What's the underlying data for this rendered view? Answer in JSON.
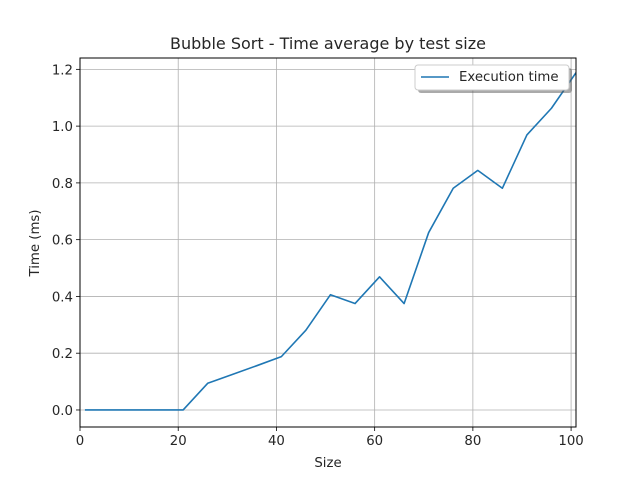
{
  "chart_data": {
    "type": "line",
    "title": "Bubble Sort - Time average by test size",
    "xlabel": "Size",
    "ylabel": "Time (ms)",
    "xlim": [
      0,
      101
    ],
    "ylim": [
      -0.06,
      1.24
    ],
    "grid": true,
    "legend_position": "top-right",
    "x_ticks": [
      0,
      20,
      40,
      60,
      80,
      100
    ],
    "x_tick_labels": [
      "0",
      "20",
      "40",
      "60",
      "80",
      "100"
    ],
    "y_ticks": [
      0.0,
      0.2,
      0.4,
      0.6,
      0.8,
      1.0,
      1.2
    ],
    "y_tick_labels": [
      "0.0",
      "0.2",
      "0.4",
      "0.6",
      "0.8",
      "1.0",
      "1.2"
    ],
    "series": [
      {
        "name": "Execution time",
        "color": "#1f77b4",
        "x": [
          1,
          6,
          11,
          16,
          21,
          26,
          31,
          36,
          41,
          46,
          51,
          56,
          61,
          66,
          71,
          76,
          81,
          86,
          91,
          96,
          101
        ],
        "y": [
          0.0,
          0.0,
          0.0,
          0.0,
          0.0,
          0.094,
          0.125,
          0.156,
          0.188,
          0.281,
          0.406,
          0.375,
          0.469,
          0.375,
          0.625,
          0.781,
          0.844,
          0.781,
          0.969,
          1.063,
          1.188
        ]
      }
    ]
  }
}
